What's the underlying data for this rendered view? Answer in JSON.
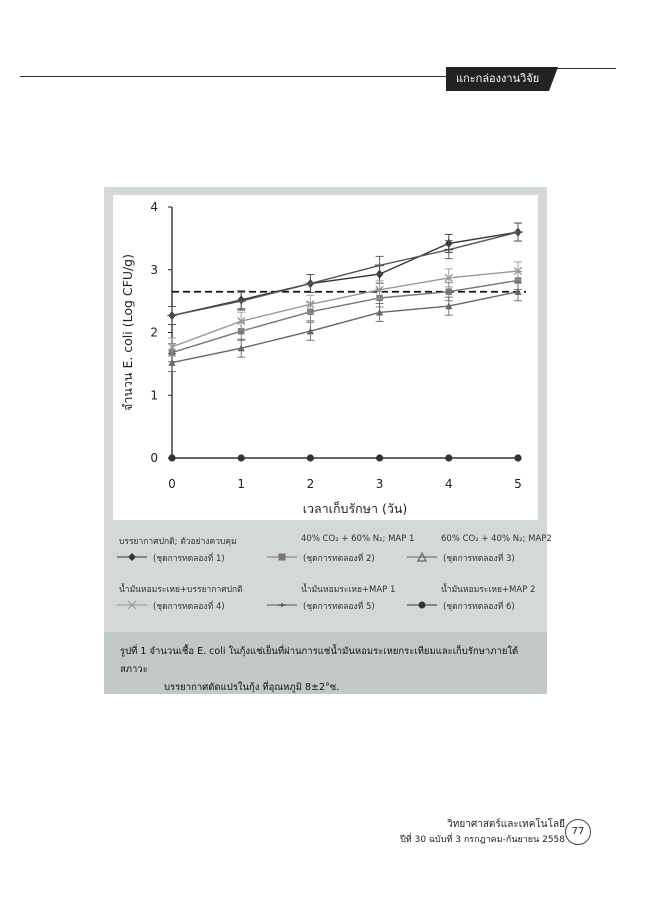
{
  "header": {
    "section": "แกะกล่องงานวิจัย"
  },
  "chart_data": {
    "type": "line",
    "ylabel": "จำนวน E. coli (Log CFU/g)",
    "xlabel": "เวลาเก็บรักษา (วัน)",
    "x": [
      0,
      1,
      2,
      3,
      4,
      5
    ],
    "xlim": [
      0,
      5
    ],
    "ylim": [
      0,
      4
    ],
    "xticks": [
      "0",
      "1",
      "2",
      "3",
      "4",
      "5"
    ],
    "yticks": [
      "0",
      "1",
      "2",
      "3",
      "4"
    ],
    "reference_line": 2.65,
    "series": [
      {
        "name": "บรรยากาศปกติ; ตัวอย่างควบคุม (ชุดการทดลองที่ 1)",
        "values": [
          2.27,
          2.52,
          2.78,
          2.93,
          3.42,
          3.6
        ],
        "color": "#333333",
        "marker": "diamond"
      },
      {
        "name": "40% CO2 + 60% N2; MAP 1 (ชุดการทดลองที่ 2)",
        "values": [
          1.68,
          2.02,
          2.33,
          2.55,
          2.65,
          2.83
        ],
        "color": "#777777",
        "marker": "square"
      },
      {
        "name": "60% CO2 + 40% N2; MAP2 (ชุดการทดลองที่ 3)",
        "values": [
          1.52,
          1.75,
          2.02,
          2.32,
          2.42,
          2.65
        ],
        "color": "#666666",
        "marker": "triangle"
      },
      {
        "name": "น้ำมันหอมระเหย+บรรยากาศปกติ (ชุดการทดลองที่ 4)",
        "values": [
          1.77,
          2.18,
          2.45,
          2.68,
          2.87,
          2.98
        ],
        "color": "#999999",
        "marker": "x"
      },
      {
        "name": "น้ำมันหอมระเหย+MAP 1 (ชุดการทดลองที่ 5)",
        "values": [
          2.27,
          2.5,
          2.78,
          3.07,
          3.32,
          3.6
        ],
        "color": "#555555",
        "marker": "dash"
      },
      {
        "name": "น้ำมันหอมระเหย+MAP 2 (ชุดการทดลองที่ 6)",
        "values": [
          0,
          0,
          0,
          0,
          0,
          0
        ],
        "color": "#333333",
        "marker": "circle"
      }
    ]
  },
  "legend": [
    {
      "line1": "บรรยากาศปกติ; ตัวอย่างควบคุม",
      "line2": "(ชุดการทดลองที่ 1)"
    },
    {
      "line1": "40% CO₂ + 60% N₂; MAP 1",
      "line2": "(ชุดการทดลองที่ 2)"
    },
    {
      "line1": "60% CO₂ + 40% N₂; MAP2",
      "line2": "(ชุดการทดลองที่ 3)"
    },
    {
      "line1": "น้ำมันหอมระเหย+บรรยากาศปกติ",
      "line2": "(ชุดการทดลองที่ 4)"
    },
    {
      "line1": "น้ำมันหอมระเหย+MAP 1",
      "line2": "(ชุดการทดลองที่ 5)"
    },
    {
      "line1": "น้ำมันหอมระเหย+MAP 2",
      "line2": "(ชุดการทดลองที่ 6)"
    }
  ],
  "caption": {
    "line1": "รูปที่ 1 จำนวนเชื้อ E. coli ในกุ้งแช่เย็นที่ผ่านการแช่น้ำมันหอมระเหยกระเทียมและเก็บรักษาภายใต้สภาวะ",
    "line2": "บรรยากาศดัดแปรในกุ้ง ที่อุณหภูมิ 8±2°ซ."
  },
  "footer": {
    "title": "วิทยาศาสตร์และเทคโนโลยี",
    "issue": "ปีที่ 30 ฉบับที่ 3 กรกฎาคม-กันยายน 2558",
    "page": "77"
  }
}
